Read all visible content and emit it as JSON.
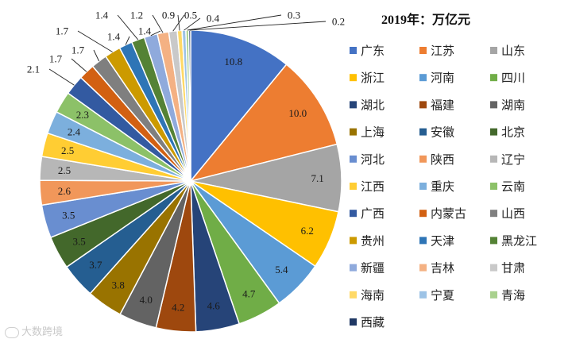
{
  "chart_data": {
    "type": "pie",
    "title": "2019年：万亿元",
    "legend_position": "right",
    "categories": [
      "广东",
      "江苏",
      "山东",
      "浙江",
      "河南",
      "四川",
      "湖北",
      "福建",
      "湖南",
      "上海",
      "安徽",
      "北京",
      "河北",
      "陕西",
      "辽宁",
      "江西",
      "重庆",
      "云南",
      "广西",
      "内蒙古",
      "山西",
      "贵州",
      "天津",
      "黑龙江",
      "新疆",
      "吉林",
      "甘肃",
      "海南",
      "宁夏",
      "青海",
      "西藏"
    ],
    "values": [
      10.8,
      10.0,
      7.1,
      6.2,
      5.4,
      4.7,
      4.6,
      4.2,
      4.0,
      3.8,
      3.7,
      3.5,
      3.5,
      2.6,
      2.5,
      2.5,
      2.4,
      2.3,
      2.1,
      1.7,
      1.7,
      1.7,
      1.4,
      1.4,
      1.4,
      1.2,
      0.9,
      0.5,
      0.4,
      0.3,
      0.2
    ],
    "value_labels": [
      "10.8",
      "10.0",
      "7.1",
      "6.2",
      "5.4",
      "4.7",
      "4.6",
      "4.2",
      "4.0",
      "3.8",
      "3.7",
      "3.5",
      "3.5",
      "2.6",
      "2.5",
      "2.5",
      "2.4",
      "2.3",
      "2.1",
      "1.7",
      "1.7",
      "1.7",
      "1.4",
      "1.4",
      "1.4",
      "1.2",
      "0.9",
      "0.5",
      "0.4",
      "0.3",
      "0.2"
    ],
    "colors": [
      "#4472C4",
      "#ED7D31",
      "#A5A5A5",
      "#FFC000",
      "#5B9BD5",
      "#70AD47",
      "#264478",
      "#9E480E",
      "#636363",
      "#997300",
      "#255E91",
      "#43682B",
      "#698ED0",
      "#F1975A",
      "#B7B7B7",
      "#FFCD33",
      "#7CAFDD",
      "#8CC168",
      "#335AA1",
      "#D26012",
      "#7F7F7F",
      "#CC9A00",
      "#2E75B6",
      "#548235",
      "#8FAADC",
      "#F4B183",
      "#C9C9C9",
      "#FFD966",
      "#9DC3E6",
      "#A9D18E",
      "#203864"
    ]
  },
  "watermark": {
    "text": "大数跨境"
  }
}
